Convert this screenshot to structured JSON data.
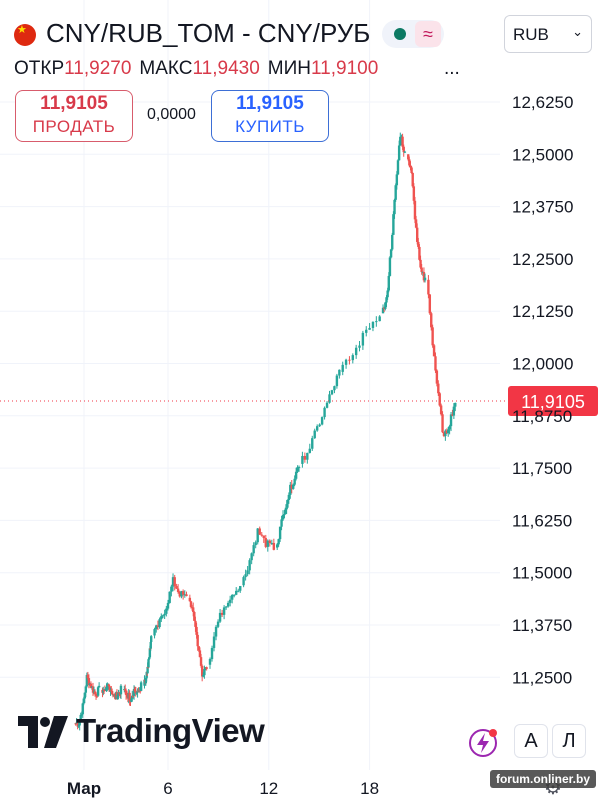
{
  "header": {
    "title": "CNY/RUB_TOM - CNY/РУБ",
    "currency": "RUB",
    "more": "...",
    "ohlc": [
      {
        "label": "ОТКР",
        "value": "11,9270"
      },
      {
        "label": "МАКС",
        "value": "11,9430"
      },
      {
        "label": "МИН",
        "value": "11,9100"
      }
    ]
  },
  "trade": {
    "sell_price": "11,9105",
    "sell_label": "ПРОДАТЬ",
    "spread": "0,0000",
    "buy_price": "11,9105",
    "buy_label": "КУПИТЬ"
  },
  "logo_text": "TradingView",
  "tools": {
    "a": "А",
    "l": "Л"
  },
  "watermark": "forum.onliner.by",
  "icons": [
    "china-flag-icon",
    "market-status-dot-icon",
    "wave-icon",
    "chevron-down-icon",
    "tradingview-logo-icon",
    "lightning-icon",
    "settings-gear-icon"
  ],
  "colors": {
    "up": "#26a69a",
    "down": "#ef5350",
    "price_label_bg": "#f23645",
    "grid": "#f0f3fa"
  },
  "chart_data": {
    "type": "candlestick",
    "current_price": 11.9105,
    "current_price_label": "11,9105",
    "ylim": [
      11.125,
      12.68
    ],
    "ytick_values": [
      11.25,
      11.375,
      11.5,
      11.625,
      11.75,
      11.875,
      12.0,
      12.125,
      12.25,
      12.375,
      12.5,
      12.625
    ],
    "ytick_labels": [
      "11,2500",
      "11,3750",
      "11,5000",
      "11,6250",
      "11,7500",
      "11,8750",
      "12,0000",
      "12,1250",
      "12,2500",
      "12,3750",
      "12,5000",
      "12,6250"
    ],
    "xtick_labels": [
      "Мар",
      "6",
      "12",
      "18"
    ],
    "xtick_days": [
      1,
      6,
      12,
      18
    ],
    "grid": true,
    "session_closes": [
      [
        11.14,
        11.18,
        11.25,
        11.23,
        11.21,
        11.22
      ],
      [
        11.21,
        11.23,
        11.22,
        11.2,
        11.21,
        11.22
      ],
      [
        11.21,
        11.2,
        11.22,
        11.21,
        11.23
      ],
      [
        11.25,
        11.27,
        11.3,
        11.35
      ],
      [
        11.38,
        11.42,
        11.48,
        11.45,
        11.44
      ],
      [
        11.41,
        11.33,
        11.26,
        11.28
      ],
      [
        11.37,
        11.42,
        11.45,
        11.47
      ],
      [
        11.53,
        11.6,
        11.57,
        11.56
      ],
      [
        11.62,
        11.68,
        11.72,
        11.76
      ],
      [
        11.8,
        11.86,
        11.92,
        11.98
      ],
      [
        12.02,
        12.08,
        12.12
      ],
      [
        12.15,
        12.28,
        12.42,
        12.55,
        12.5
      ],
      [
        12.45,
        12.32,
        12.22,
        12.2
      ],
      [
        12.05,
        11.92,
        11.82,
        11.86,
        11.91
      ]
    ],
    "session_days": [
      0.5,
      2.1,
      3.4,
      4.6,
      5.2,
      7.3,
      8.5,
      10.5,
      12.5,
      14.0,
      16.4,
      18.8,
      20.3,
      21.5
    ]
  }
}
